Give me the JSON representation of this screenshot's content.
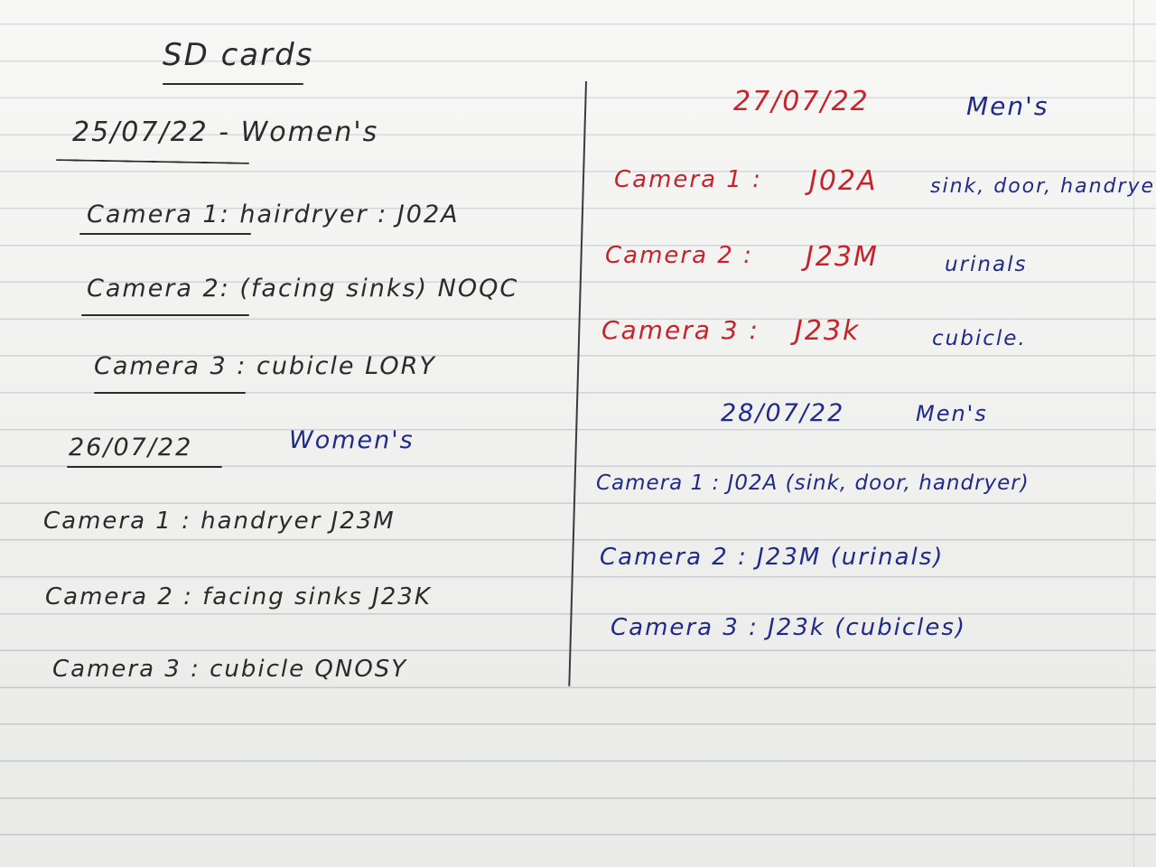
{
  "title": "SD cards",
  "left": {
    "day1": {
      "heading": "25/07/22 - Women's",
      "cam1": "Camera 1: hairdryer : J02A",
      "cam2": "Camera 2: (facing sinks) NOQC",
      "cam3": "Camera 3 : cubicle   LORY"
    },
    "day2": {
      "date": "26/07/22",
      "label": "Women's",
      "cam1": "Camera 1 : handryer    J23M",
      "cam2": "Camera 2 :  facing sinks     J23K",
      "cam3": "Camera 3 : cubicle          QNOSY"
    }
  },
  "right": {
    "day3": {
      "date": "27/07/22",
      "label": "Men's",
      "cam1_label": "Camera 1  :",
      "cam1_code": "J02A",
      "cam1_note": "sink, door, handryer",
      "cam2_label": "Camera 2  :",
      "cam2_code": "J23M",
      "cam2_note": "urinals",
      "cam3_label": "Camera 3 :",
      "cam3_code": "J23k",
      "cam3_note": "cubicle."
    },
    "day4": {
      "date": "28/07/22",
      "label": "Men's",
      "cam1": "Camera 1  :  J02A  (sink, door, handryer)",
      "cam2": "Camera 2 :  J23M  (urinals)",
      "cam3": "Camera 3 :  J23k  (cubicles)"
    }
  },
  "colors": {
    "paper": "#f3f3f1",
    "black_ink": "#2b2b2e",
    "blue_ink": "#1f2a8a",
    "red_ink": "#c8232b",
    "rule_line": "#c8ccd3"
  }
}
